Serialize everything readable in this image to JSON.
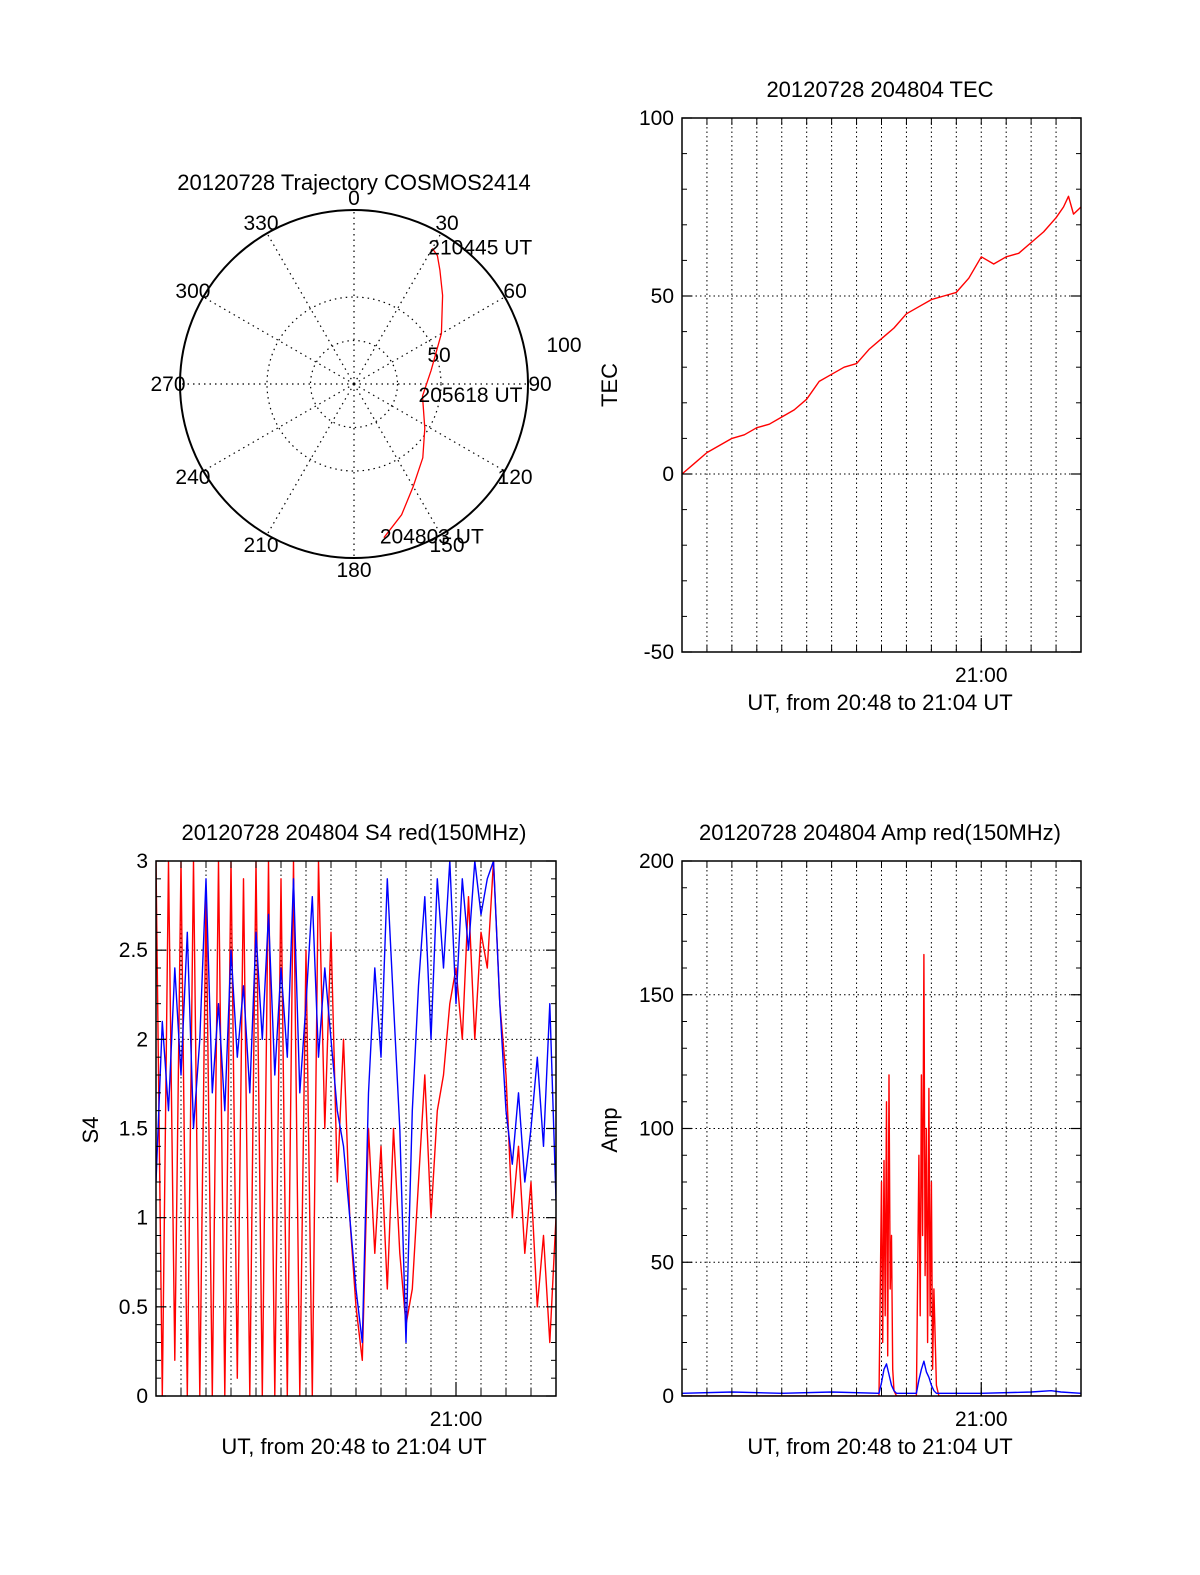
{
  "chart_data": [
    {
      "type": "polar",
      "title": "20120728 Trajectory COSMOS2414",
      "angle_labels": [
        "0",
        "30",
        "60",
        "90",
        "120",
        "150",
        "180",
        "210",
        "240",
        "270",
        "300",
        "330"
      ],
      "radial_labels": [
        "50",
        "100"
      ],
      "rmax": 100,
      "grid": true,
      "trajectory": {
        "color": "#ff0000",
        "azimuth_deg": [
          169,
          160,
          150,
          137,
          122,
          100,
          80,
          60,
          45,
          37,
          33,
          30
        ],
        "radius": [
          90,
          80,
          68,
          58,
          48,
          40,
          45,
          58,
          72,
          82,
          88,
          90
        ]
      },
      "annotations": [
        {
          "text": "210445 UT",
          "azimuth_deg": 30,
          "radius": 90
        },
        {
          "text": "205618 UT",
          "azimuth_deg": 100,
          "radius": 40
        },
        {
          "text": "204803 UT",
          "azimuth_deg": 169,
          "radius": 90
        }
      ]
    },
    {
      "type": "line",
      "title": "20120728 204804 TEC",
      "xlabel": "UT, from 20:48 to 21:04 UT",
      "ylabel": "TEC",
      "xlim": [
        0,
        16
      ],
      "ylim": [
        -50,
        100
      ],
      "yticks": [
        "-50",
        "0",
        "50",
        "100"
      ],
      "xticks": [
        {
          "x": 12,
          "label": "21:00"
        }
      ],
      "grid": true,
      "series": [
        {
          "color": "#ff0000",
          "x": [
            0,
            0.5,
            1,
            1.5,
            2,
            2.5,
            3,
            3.5,
            4,
            4.5,
            5,
            5.5,
            6,
            6.5,
            7,
            7.5,
            8,
            8.5,
            9,
            9.5,
            10,
            10.5,
            11,
            11.5,
            12,
            12.5,
            13,
            13.5,
            14,
            14.5,
            15,
            15.3,
            15.5,
            15.7,
            16
          ],
          "y": [
            0,
            3,
            6,
            8,
            10,
            11,
            13,
            14,
            16,
            18,
            21,
            26,
            28,
            30,
            31,
            35,
            38,
            41,
            45,
            47,
            49,
            50,
            51,
            55,
            61,
            59,
            61,
            62,
            65,
            68,
            72,
            75,
            78,
            73,
            75
          ]
        }
      ]
    },
    {
      "type": "line",
      "title": "20120728 204804 S4 red(150MHz)",
      "xlabel": "UT, from 20:48 to 21:04 UT",
      "ylabel": "S4",
      "xlim": [
        0,
        16
      ],
      "ylim": [
        0,
        3
      ],
      "yticks": [
        "0",
        "0.5",
        "1",
        "1.5",
        "2",
        "2.5",
        "3"
      ],
      "xticks": [
        {
          "x": 12,
          "label": "21:00"
        }
      ],
      "grid": true,
      "series": [
        {
          "color": "#ff0000",
          "x": [
            0,
            0.25,
            0.5,
            0.75,
            1,
            1.25,
            1.5,
            1.75,
            2,
            2.25,
            2.5,
            2.75,
            3,
            3.25,
            3.5,
            3.75,
            4,
            4.25,
            4.5,
            4.75,
            5,
            5.25,
            5.5,
            5.75,
            6,
            6.25,
            6.5,
            6.75,
            7,
            7.25,
            7.5,
            7.75,
            8,
            8.25,
            8.5,
            8.75,
            9,
            9.25,
            9.5,
            9.75,
            10,
            10.25,
            10.5,
            10.75,
            11,
            11.25,
            11.5,
            11.75,
            12,
            12.25,
            12.5,
            12.75,
            13,
            13.25,
            13.5,
            13.75,
            14,
            14.25,
            14.5,
            14.75,
            15,
            15.25,
            15.5,
            15.75,
            16
          ],
          "y": [
            3,
            0,
            3,
            0.2,
            3,
            0,
            3,
            0,
            2.8,
            0,
            3,
            0,
            3,
            0.1,
            2.9,
            0,
            3,
            0,
            3,
            0,
            2.9,
            0,
            3,
            0,
            2.5,
            0,
            3,
            1.5,
            2.6,
            1.2,
            2.0,
            1.0,
            0.5,
            0.2,
            1.5,
            0.8,
            1.4,
            0.6,
            1.5,
            0.8,
            0.4,
            0.6,
            1.2,
            1.8,
            1.0,
            1.6,
            1.8,
            2.2,
            2.4,
            2.0,
            2.8,
            2.0,
            2.6,
            2.4,
            3,
            2.2,
            1.8,
            1.0,
            1.4,
            0.8,
            1.2,
            0.5,
            0.9,
            0.3,
            1.0
          ]
        },
        {
          "color": "#0000ff",
          "x": [
            0,
            0.25,
            0.5,
            0.75,
            1,
            1.25,
            1.5,
            1.75,
            2,
            2.25,
            2.5,
            2.75,
            3,
            3.25,
            3.5,
            3.75,
            4,
            4.25,
            4.5,
            4.75,
            5,
            5.25,
            5.5,
            5.75,
            6,
            6.25,
            6.5,
            6.75,
            7,
            7.25,
            7.5,
            7.75,
            8,
            8.25,
            8.5,
            8.75,
            9,
            9.25,
            9.5,
            9.75,
            10,
            10.25,
            10.5,
            10.75,
            11,
            11.25,
            11.5,
            11.75,
            12,
            12.25,
            12.5,
            12.75,
            13,
            13.25,
            13.5,
            13.75,
            14,
            14.25,
            14.5,
            14.75,
            15,
            15.25,
            15.5,
            15.75,
            16
          ],
          "y": [
            1.2,
            2.1,
            1.6,
            2.4,
            1.8,
            2.6,
            1.5,
            2.0,
            2.9,
            1.7,
            2.2,
            1.6,
            2.5,
            1.9,
            2.3,
            1.7,
            2.6,
            2.0,
            2.7,
            1.8,
            2.4,
            1.9,
            2.9,
            1.7,
            2.2,
            2.8,
            1.9,
            2.4,
            2.0,
            1.6,
            1.4,
            1.0,
            0.6,
            0.3,
            1.7,
            2.4,
            1.9,
            2.9,
            2.2,
            1.5,
            0.3,
            1.6,
            2.3,
            2.8,
            2.0,
            2.9,
            2.4,
            3,
            2.2,
            2.9,
            2.5,
            3,
            2.7,
            2.9,
            3,
            2.2,
            1.6,
            1.3,
            1.7,
            1.2,
            1.5,
            1.9,
            1.4,
            2.2,
            1.1
          ]
        }
      ]
    },
    {
      "type": "line",
      "title": "20120728 204804 Amp red(150MHz)",
      "xlabel": "UT, from 20:48 to 21:04 UT",
      "ylabel": "Amp",
      "xlim": [
        0,
        16
      ],
      "ylim": [
        0,
        200
      ],
      "yticks": [
        "0",
        "50",
        "100",
        "150",
        "200"
      ],
      "xticks": [
        {
          "x": 12,
          "label": "21:00"
        }
      ],
      "grid": true,
      "series": [
        {
          "color": "#ff0000",
          "x": [
            0,
            7.9,
            8.0,
            8.05,
            8.1,
            8.15,
            8.2,
            8.25,
            8.3,
            8.35,
            8.4,
            8.45,
            8.5,
            8.6,
            9.4,
            9.5,
            9.55,
            9.6,
            9.65,
            9.7,
            9.75,
            9.8,
            9.85,
            9.9,
            9.95,
            10.0,
            10.05,
            10.1,
            10.2,
            10.3,
            16
          ],
          "y": [
            0,
            0,
            80,
            20,
            88,
            30,
            110,
            15,
            120,
            40,
            60,
            10,
            2,
            0,
            0,
            90,
            30,
            120,
            60,
            165,
            45,
            100,
            20,
            115,
            30,
            80,
            10,
            40,
            4,
            0,
            0
          ]
        },
        {
          "color": "#0000ff",
          "x": [
            0,
            2,
            4,
            6,
            7.9,
            8.0,
            8.1,
            8.2,
            8.3,
            8.4,
            8.5,
            8.6,
            9.4,
            9.5,
            9.6,
            9.7,
            9.8,
            9.9,
            10.0,
            10.1,
            10.2,
            10.4,
            12,
            14,
            14.8,
            15.2,
            16
          ],
          "y": [
            1,
            1.5,
            1,
            1.5,
            1,
            5,
            10,
            12,
            8,
            4,
            2,
            1,
            1,
            6,
            10,
            13,
            9,
            7,
            4,
            2,
            1,
            1,
            1,
            1.5,
            2,
            1.5,
            1
          ]
        }
      ]
    }
  ]
}
